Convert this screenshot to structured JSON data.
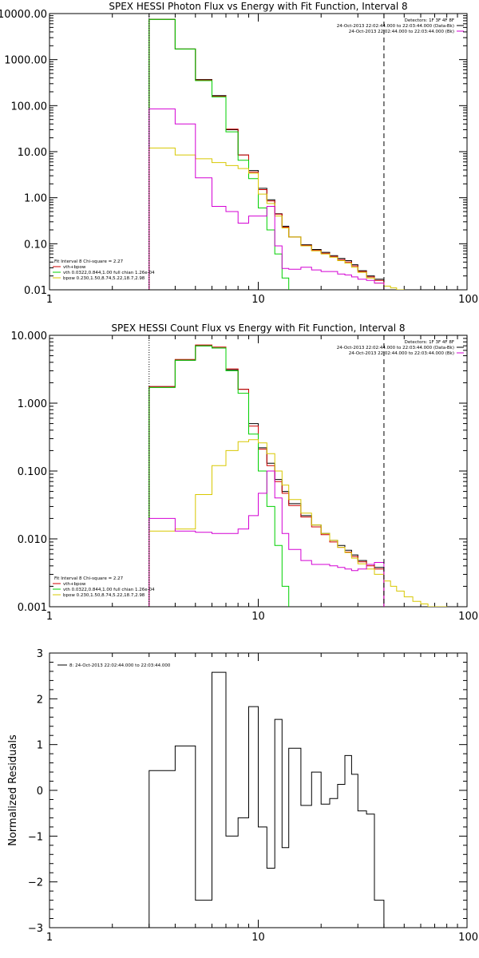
{
  "colors": {
    "data": "#000000",
    "total": "#d00000",
    "thermal": "#00d000",
    "power": "#d8c800",
    "power_alt": "#d400d4"
  },
  "chart_data": [
    {
      "type": "line",
      "title": "SPEX HESSI Photon Flux vs Energy with Fit Function, Interval 8",
      "xlabel": "",
      "ylabel": "",
      "xscale": "log",
      "yscale": "log",
      "xlim": [
        1,
        100
      ],
      "ylim": [
        0.01,
        10000
      ],
      "xticks": [
        "1",
        "10",
        "100"
      ],
      "yticks": [
        "10000.00",
        "1000.00",
        "100.00",
        "10.00",
        "1.00",
        "0.10",
        "0.01"
      ],
      "legend_tr": [
        "Detectors: 1F 3F 4F 8F",
        "24-Oct-2013 22:02:44.000 to 22:03:44.000 (Data-Bk)",
        "24-Oct-2013 22:02:44.000 to 22:03:44.000 (Bk)"
      ],
      "legend_bl": [
        "Fit Interval 8   Chi-square = 2.27",
        "vth+bpow",
        "vth 0.0322,0.844,1.00  full chian 1.26e-04",
        "bpow 0.230,1.50,8.74,5.22,18.7,2.98"
      ],
      "x_edges": [
        3,
        4,
        5,
        6,
        7,
        8,
        9,
        10,
        11,
        12,
        13,
        14,
        16,
        18,
        20,
        22,
        24,
        26,
        28,
        30,
        33,
        36,
        40,
        43,
        46,
        50
      ],
      "vlines": [
        {
          "x": 3,
          "style": "dotted"
        },
        {
          "x": 40,
          "style": "dashed"
        }
      ],
      "series": [
        {
          "name": "data",
          "color": "data",
          "values": [
            7500,
            1700,
            370,
            165,
            30,
            8.5,
            3.9,
            1.6,
            0.9,
            0.45,
            0.24,
            0.14,
            0.095,
            0.075,
            0.065,
            0.055,
            0.048,
            0.043,
            0.035,
            0.026,
            0.02,
            0.017,
            null,
            null,
            null
          ]
        },
        {
          "name": "vth+bpow",
          "color": "total",
          "values": [
            7500,
            1700,
            360,
            160,
            31,
            8.5,
            3.6,
            1.5,
            0.85,
            0.44,
            0.23,
            0.14,
            0.092,
            0.072,
            0.062,
            0.053,
            0.045,
            0.04,
            0.033,
            0.025,
            0.019,
            0.016,
            null,
            null,
            null
          ]
        },
        {
          "name": "vth",
          "color": "thermal",
          "values": [
            7500,
            1700,
            350,
            155,
            27,
            6.5,
            2.6,
            0.6,
            0.2,
            0.06,
            0.018,
            null,
            null,
            null,
            null,
            null,
            null,
            null,
            null,
            null,
            null,
            null,
            null,
            null,
            null
          ]
        },
        {
          "name": "bpow",
          "color": "power",
          "values": [
            12,
            8.5,
            7,
            5.8,
            5,
            4.3,
            3.4,
            1.2,
            0.75,
            0.4,
            0.22,
            0.14,
            0.09,
            0.07,
            0.06,
            0.051,
            0.043,
            0.038,
            0.031,
            0.024,
            0.018,
            0.014,
            0.012,
            0.011,
            0.01
          ]
        },
        {
          "name": "bk",
          "color": "power_alt",
          "values": [
            85,
            40,
            2.7,
            0.65,
            0.5,
            0.28,
            0.4,
            0.4,
            0.65,
            0.09,
            0.029,
            0.028,
            0.031,
            0.027,
            0.025,
            0.025,
            0.022,
            0.021,
            0.019,
            0.017,
            0.016,
            0.014,
            null,
            null,
            null
          ]
        }
      ]
    },
    {
      "type": "line",
      "title": "SPEX HESSI Count Flux vs Energy with Fit Function, Interval 8",
      "xlabel": "",
      "ylabel": "",
      "xscale": "log",
      "yscale": "log",
      "xlim": [
        1,
        100
      ],
      "ylim": [
        0.001,
        10
      ],
      "xticks": [
        "1",
        "10",
        "100"
      ],
      "yticks": [
        "10.000",
        "1.000",
        "0.100",
        "0.010",
        "0.001"
      ],
      "legend_tr": [
        "Detectors: 1F 3F 4F 8F",
        "24-Oct-2013 22:02:44.000 to 22:03:44.000 (Data-Bk)",
        "24-Oct-2013 22:02:44.000 to 22:03:44.000 (Bk)"
      ],
      "legend_bl": [
        "Fit Interval 8   Chi-square = 2.27",
        "vth+bpow",
        "vth 0.0322,0.844,1.00  full chian 1.26e-04",
        "bpow 0.230,1.50,8.74,5.22,18.7,2.98"
      ],
      "x_edges": [
        3,
        4,
        5,
        6,
        7,
        8,
        9,
        10,
        11,
        12,
        13,
        14,
        16,
        18,
        20,
        22,
        24,
        26,
        28,
        30,
        33,
        36,
        40,
        43,
        46,
        50,
        55,
        60,
        65,
        70,
        75,
        80
      ],
      "vlines": [
        {
          "x": 3,
          "style": "dotted"
        },
        {
          "x": 40,
          "style": "dashed"
        }
      ],
      "series": [
        {
          "name": "data",
          "color": "data",
          "values": [
            1.75,
            4.3,
            7.0,
            6.5,
            3.1,
            1.6,
            0.5,
            0.22,
            0.13,
            0.075,
            0.05,
            0.033,
            0.022,
            0.016,
            0.012,
            0.0095,
            0.008,
            0.0068,
            0.0058,
            0.0048,
            0.0042,
            0.0038,
            null,
            null,
            null,
            null,
            null,
            null,
            null,
            null,
            null
          ]
        },
        {
          "name": "vth+bpow",
          "color": "total",
          "values": [
            1.75,
            4.4,
            7.2,
            6.7,
            3.2,
            1.6,
            0.46,
            0.21,
            0.12,
            0.07,
            0.047,
            0.031,
            0.021,
            0.015,
            0.0115,
            0.009,
            0.0075,
            0.0064,
            0.0055,
            0.0046,
            0.004,
            0.0036,
            null,
            null,
            null,
            null,
            null,
            null,
            null,
            null,
            null
          ]
        },
        {
          "name": "vth",
          "color": "thermal",
          "values": [
            1.7,
            4.3,
            7.0,
            6.5,
            3.0,
            1.4,
            0.35,
            0.1,
            0.03,
            0.008,
            0.002,
            null,
            null,
            null,
            null,
            null,
            null,
            null,
            null,
            null,
            null,
            null,
            null,
            null,
            null,
            null,
            null,
            null,
            null,
            null,
            null
          ]
        },
        {
          "name": "bpow",
          "color": "power",
          "values": [
            0.013,
            0.014,
            0.045,
            0.12,
            0.2,
            0.27,
            0.29,
            0.26,
            0.18,
            0.1,
            0.062,
            0.038,
            0.024,
            0.016,
            0.012,
            0.0095,
            0.0075,
            0.0063,
            0.0052,
            0.0043,
            0.0036,
            0.003,
            0.0024,
            0.002,
            0.0017,
            0.0014,
            0.0012,
            0.0011,
            0.001,
            0.001,
            0.001
          ]
        },
        {
          "name": "bk",
          "color": "power_alt",
          "values": [
            0.02,
            0.013,
            0.0125,
            0.012,
            0.012,
            0.014,
            0.022,
            0.047,
            0.1,
            0.04,
            0.012,
            0.007,
            0.0048,
            0.0042,
            0.0042,
            0.004,
            0.0038,
            0.0036,
            0.0034,
            0.0036,
            0.0042,
            0.0045,
            null,
            null,
            null,
            null,
            null,
            null,
            null,
            null,
            null
          ]
        }
      ]
    },
    {
      "type": "line",
      "title": "",
      "xlabel": "",
      "ylabel": "Normalized Residuals",
      "xscale": "log",
      "yscale": "linear",
      "xlim": [
        1,
        100
      ],
      "ylim": [
        -3,
        3
      ],
      "xticks": [
        "1",
        "10",
        "100"
      ],
      "yticks": [
        "3",
        "2",
        "1",
        "0",
        "−1",
        "−2",
        "−3"
      ],
      "legend_tl": [
        "8: 24-Oct-2013 22:02:44.000 to 22:03:44.000"
      ],
      "x_edges": [
        3,
        4,
        5,
        6,
        7,
        8,
        9,
        10,
        11,
        12,
        13,
        14,
        16,
        18,
        20,
        22,
        24,
        26,
        28,
        30,
        33,
        36,
        40
      ],
      "series": [
        {
          "name": "residuals",
          "color": "data",
          "values": [
            0.43,
            0.97,
            -2.75,
            2.58,
            -1.0,
            -0.6,
            1.83,
            -0.8,
            -1.7,
            1.55,
            -1.25,
            0.92,
            -0.33,
            0.4,
            -0.3,
            -0.18,
            0.13,
            0.76,
            0.35,
            -0.45,
            -0.52,
            -3.0
          ]
        }
      ]
    }
  ]
}
